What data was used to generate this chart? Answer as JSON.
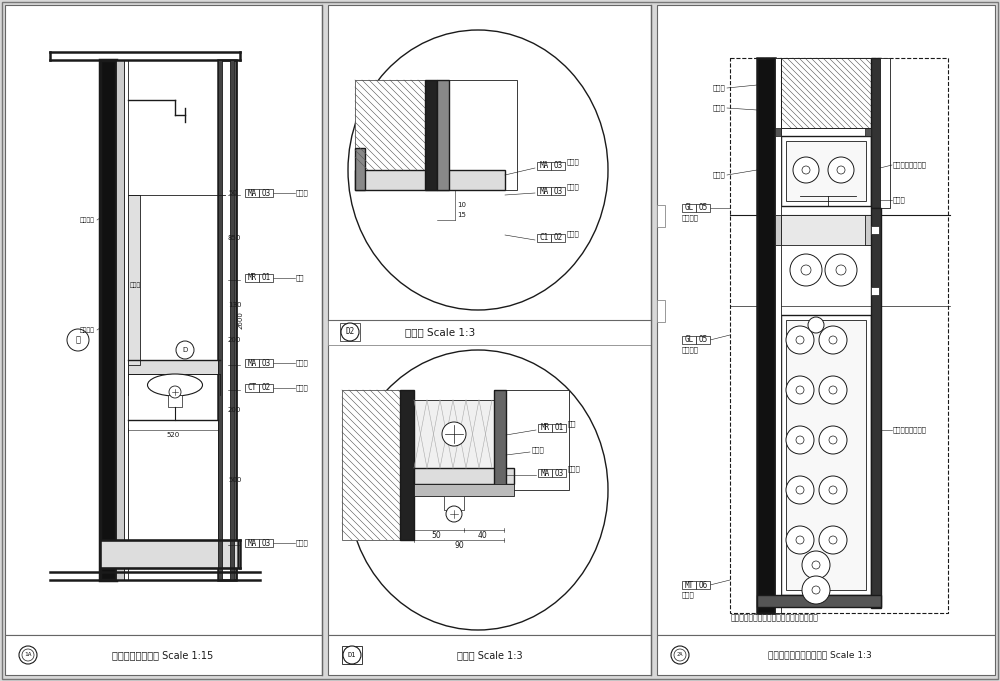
{
  "bg_color": "#d8d8d8",
  "line_color": "#1a1a1a",
  "panel1_title": "卫生间台盆节点图 Scale 1:15",
  "panel2a_title": "大样图 Scale 1:3",
  "panel2b_title": "大样图 Scale 1:3",
  "panel3_title": "卫生间墙面抽纸盒立面图 Scale 1:3",
  "panel2a_id": "D2",
  "panel2b_id": "D1",
  "panel3_id": "2A",
  "panel1_id": "1A",
  "note_text": "注：此节点需现场根据实际情况进一步深化",
  "p1_labels": [
    {
      "code": "MA",
      "num": "O3",
      "note": "人造石",
      "side": "right"
    },
    {
      "code": "MR",
      "num": "O1",
      "note": "镜嗲",
      "side": "right"
    },
    {
      "code": "MA",
      "num": "O3",
      "note": "人造石",
      "side": "right"
    },
    {
      "code": "CT",
      "num": "O2",
      "note": "陶瓷砖",
      "side": "right"
    },
    {
      "code": "MA",
      "num": "O3",
      "note": "人造石",
      "side": "right"
    }
  ],
  "p3_labels_left": [
    {
      "code": "GL",
      "num": "O5",
      "note": "烤漆玻璃"
    },
    {
      "code": "GL",
      "num": "O5",
      "note": "烤漆玻璃"
    },
    {
      "code": "MT",
      "num": "O6",
      "note": "机型材"
    }
  ]
}
